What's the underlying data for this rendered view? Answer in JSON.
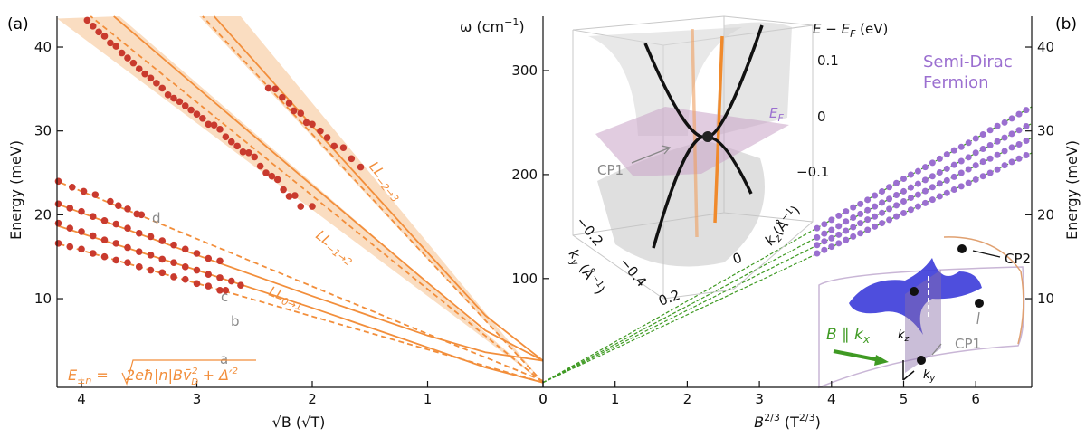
{
  "panel_labels": {
    "a": "(a)",
    "b": "(b)"
  },
  "colors": {
    "model": "#f28e3b",
    "band": "#f9d7b6",
    "data_a": "#c93a2e",
    "data_b": "#9b6fd0",
    "fit_b": "#3f9a23",
    "annot": "#8a8a8a"
  },
  "chart_data": [
    {
      "type": "scatter",
      "panel": "(a)",
      "xlabel": "√B (√T)",
      "ylabel": "Energy (meV)",
      "xlim": [
        4.21,
        0
      ],
      "ylim": [
        -0.6,
        43.7
      ],
      "xticks": [
        "4",
        "3",
        "2",
        "1",
        "0"
      ],
      "yticks": [
        "10",
        "20",
        "30",
        "40"
      ],
      "x_reversed": true,
      "grid": false,
      "formula": {
        "E": "E",
        "sub": "±n",
        "eq": " = ",
        "root": "2eħ|n|B",
        "v": "v̄",
        "vsub": "D",
        "vsup": "2",
        "plus": " + Δ′",
        "dsup": "2"
      },
      "curve_labels": [
        {
          "base": "LL",
          "sub": "−2→3"
        },
        {
          "base": "LL",
          "sub": "−1→2"
        },
        {
          "base": "LL",
          "sub": "0→1"
        }
      ],
      "branch_labels": [
        "a",
        "b",
        "c",
        "d"
      ],
      "model_curves": [
        {
          "style": "solid",
          "points": [
            [
              0,
              0
            ],
            [
              0.5,
              1.8
            ],
            [
              1,
              4.2
            ],
            [
              2,
              8.9
            ],
            [
              3,
              13.4
            ],
            [
              4.21,
              18.7
            ]
          ]
        },
        {
          "style": "solid",
          "points": [
            [
              0,
              2.6
            ],
            [
              0.5,
              3.6
            ],
            [
              1,
              5.6
            ],
            [
              2,
              10.3
            ],
            [
              3,
              15.2
            ],
            [
              4.21,
              21.3
            ]
          ]
        },
        {
          "style": "dashed",
          "points": [
            [
              0,
              0
            ],
            [
              4.21,
              16.6
            ]
          ]
        },
        {
          "style": "dashed",
          "points": [
            [
              0,
              0.2
            ],
            [
              1,
              5.8
            ],
            [
              4.21,
              24
            ]
          ]
        },
        {
          "style": "solid",
          "points": [
            [
              0,
              2.6
            ],
            [
              0.5,
              6.2
            ],
            [
              1,
              11.9
            ],
            [
              2,
              23.5
            ],
            [
              3,
              35.2
            ],
            [
              3.72,
              43.7
            ]
          ]
        },
        {
          "style": "dashed",
          "points": [
            [
              0,
              0
            ],
            [
              3.92,
              43.7
            ]
          ]
        },
        {
          "style": "solid",
          "points": [
            [
              0,
              2.6
            ],
            [
              0.5,
              8.0
            ],
            [
              1,
              15.5
            ],
            [
              2,
              30.6
            ],
            [
              2.85,
              43.7
            ]
          ]
        },
        {
          "style": "dashed",
          "points": [
            [
              0,
              0
            ],
            [
              2.95,
              43.7
            ]
          ]
        }
      ],
      "bands": [
        {
          "lower": [
            [
              0,
              0
            ],
            [
              4.21,
              43.4
            ]
          ],
          "upper": [
            [
              0,
              0
            ],
            [
              3.67,
              43.7
            ]
          ]
        },
        {
          "lower": [
            [
              0,
              0
            ],
            [
              2.98,
              43.7
            ]
          ],
          "upper": [
            [
              0,
              0
            ],
            [
              2.62,
              43.7
            ]
          ]
        }
      ],
      "series": [
        {
          "label": "a",
          "points": [
            [
              4.2,
              16.6
            ],
            [
              4.1,
              16.2
            ],
            [
              4.0,
              15.9
            ],
            [
              3.9,
              15.4
            ],
            [
              3.8,
              15.0
            ],
            [
              3.7,
              14.6
            ],
            [
              3.6,
              14.3
            ],
            [
              3.5,
              13.8
            ],
            [
              3.4,
              13.4
            ],
            [
              3.3,
              13.1
            ],
            [
              3.2,
              12.6
            ],
            [
              3.1,
              12.3
            ],
            [
              3.0,
              11.8
            ],
            [
              2.9,
              11.5
            ],
            [
              2.8,
              11.0
            ],
            [
              2.75,
              11.0
            ]
          ]
        },
        {
          "label": "b",
          "points": [
            [
              4.2,
              19.0
            ],
            [
              4.1,
              18.4
            ],
            [
              4.0,
              18.0
            ],
            [
              3.9,
              17.5
            ],
            [
              3.8,
              17.0
            ],
            [
              3.7,
              16.6
            ],
            [
              3.6,
              16.1
            ],
            [
              3.5,
              15.6
            ],
            [
              3.4,
              15.2
            ],
            [
              3.3,
              14.7
            ],
            [
              3.2,
              14.3
            ],
            [
              3.1,
              13.8
            ],
            [
              3.0,
              13.4
            ],
            [
              2.9,
              12.9
            ],
            [
              2.8,
              12.5
            ],
            [
              2.7,
              12.1
            ],
            [
              2.62,
              11.6
            ]
          ]
        },
        {
          "label": "c",
          "points": [
            [
              4.2,
              21.3
            ],
            [
              4.1,
              20.8
            ],
            [
              4.0,
              20.4
            ],
            [
              3.9,
              19.8
            ],
            [
              3.8,
              19.3
            ],
            [
              3.7,
              18.9
            ],
            [
              3.6,
              18.4
            ],
            [
              3.5,
              17.8
            ],
            [
              3.4,
              17.4
            ],
            [
              3.3,
              16.9
            ],
            [
              3.2,
              16.4
            ],
            [
              3.1,
              15.9
            ],
            [
              3.0,
              15.4
            ],
            [
              2.9,
              14.8
            ],
            [
              2.8,
              14.5
            ]
          ]
        },
        {
          "label": "d",
          "points": [
            [
              4.2,
              24.0
            ],
            [
              4.08,
              23.3
            ],
            [
              3.98,
              22.8
            ],
            [
              3.88,
              22.4
            ],
            [
              3.75,
              21.6
            ],
            [
              3.68,
              21.1
            ],
            [
              3.6,
              20.7
            ],
            [
              3.52,
              20.1
            ],
            [
              3.48,
              20.0
            ]
          ]
        },
        {
          "label": "LL−1→2",
          "points": [
            [
              3.95,
              43.2
            ],
            [
              3.9,
              42.5
            ],
            [
              3.85,
              41.8
            ],
            [
              3.8,
              41.3
            ],
            [
              3.75,
              40.5
            ],
            [
              3.7,
              40.1
            ],
            [
              3.65,
              39.3
            ],
            [
              3.6,
              38.7
            ],
            [
              3.55,
              38.1
            ],
            [
              3.5,
              37.4
            ],
            [
              3.45,
              36.8
            ],
            [
              3.4,
              36.3
            ],
            [
              3.35,
              35.7
            ],
            [
              3.3,
              35.1
            ],
            [
              3.25,
              34.3
            ],
            [
              3.2,
              33.9
            ],
            [
              3.15,
              33.5
            ],
            [
              3.1,
              33.0
            ],
            [
              3.05,
              32.5
            ],
            [
              3.0,
              32.0
            ],
            [
              2.95,
              31.5
            ],
            [
              2.9,
              30.8
            ],
            [
              2.85,
              30.7
            ],
            [
              2.8,
              30.2
            ],
            [
              2.75,
              29.3
            ],
            [
              2.7,
              28.7
            ],
            [
              2.65,
              28.2
            ],
            [
              2.6,
              27.5
            ],
            [
              2.55,
              27.4
            ],
            [
              2.5,
              26.9
            ],
            [
              2.45,
              25.8
            ],
            [
              2.4,
              25.0
            ],
            [
              2.35,
              24.6
            ],
            [
              2.3,
              24.2
            ],
            [
              2.25,
              23.0
            ],
            [
              2.2,
              22.2
            ],
            [
              2.15,
              22.3
            ],
            [
              2.1,
              21.0
            ],
            [
              2.0,
              21.0
            ]
          ]
        },
        {
          "label": "LL−2→3",
          "points": [
            [
              2.38,
              35.1
            ],
            [
              2.32,
              35.0
            ],
            [
              2.26,
              34.0
            ],
            [
              2.2,
              33.3
            ],
            [
              2.16,
              32.4
            ],
            [
              2.1,
              32.1
            ],
            [
              2.05,
              31.0
            ],
            [
              2.0,
              30.8
            ],
            [
              1.93,
              30.0
            ],
            [
              1.87,
              29.2
            ],
            [
              1.81,
              28.2
            ],
            [
              1.73,
              28.0
            ],
            [
              1.66,
              26.7
            ],
            [
              1.58,
              25.7
            ]
          ]
        }
      ]
    },
    {
      "type": "scatter",
      "panel": "(b)",
      "xlabel_base": "B",
      "xlabel_sup": "2/3",
      "xlabel_unit": " (T",
      "xlabel_unit_sup": "2/3",
      "xlabel_close": ")",
      "ylabel_left_base": "ω (cm",
      "ylabel_left_sup": "−1",
      "ylabel_left_close": ")",
      "ylabel_right": "Energy (meV)",
      "xlim": [
        0,
        6.78
      ],
      "ylim": [
        -0.6,
        43.7
      ],
      "xticks": [
        "0",
        "1",
        "2",
        "3",
        "4",
        "5",
        "6"
      ],
      "yticks_left": [
        "100",
        "200",
        "300"
      ],
      "yticks_right": [
        "10",
        "20",
        "30",
        "40"
      ],
      "grid": false,
      "legend_text": [
        "Semi-Dirac",
        "Fermion"
      ],
      "fits": [
        [
          [
            0,
            0
          ],
          [
            6.78,
            32.9
          ]
        ],
        [
          [
            0,
            0
          ],
          [
            6.78,
            30.9
          ]
        ],
        [
          [
            0,
            0
          ],
          [
            6.78,
            29.2
          ]
        ],
        [
          [
            0,
            0
          ],
          [
            6.78,
            27.4
          ]
        ]
      ],
      "x": [
        3.8,
        4.0,
        4.2,
        4.4,
        4.6,
        4.8,
        5.0,
        5.2,
        5.4,
        5.6,
        5.8,
        6.0,
        6.2,
        6.4,
        6.6
      ],
      "series": [
        {
          "values": [
            18.4,
            19.4,
            20.4,
            21.3,
            22.3,
            23.3,
            24.3,
            25.2,
            26.2,
            27.2,
            28.1,
            29.1,
            30.1,
            31.0,
            32.0
          ]
        },
        {
          "values": [
            17.3,
            18.2,
            19.2,
            20.1,
            21.0,
            21.9,
            22.8,
            23.7,
            24.6,
            25.5,
            26.4,
            27.4,
            28.3,
            29.2,
            30.1
          ]
        },
        {
          "values": [
            16.4,
            17.2,
            18.1,
            19.0,
            19.8,
            20.7,
            21.6,
            22.4,
            23.3,
            24.1,
            25.0,
            25.9,
            26.7,
            27.6,
            28.4
          ]
        },
        {
          "values": [
            15.4,
            16.2,
            17.0,
            17.8,
            18.6,
            19.4,
            20.2,
            21.0,
            21.8,
            22.6,
            23.4,
            24.2,
            25.0,
            25.9,
            26.7
          ]
        }
      ]
    }
  ],
  "inset_band": {
    "zlabel_base": "E − E",
    "zlabel_sub": "F",
    "zlabel_unit": " (eV)",
    "zticks": [
      "0.1",
      "0",
      "−0.1"
    ],
    "ef_base": "E",
    "ef_sub": "F",
    "cp1": "CP1",
    "ky_ticks": [
      "−0.2",
      "−0.4",
      "0.2"
    ],
    "ky_base": "k",
    "ky_sub": "y",
    "ky_unit": " (Å",
    "ky_sup": "−1",
    "ky_close": ")",
    "kz_ticks": [
      "0"
    ],
    "kz_base": "k",
    "kz_sub": "z",
    "kz_unit": "(Å",
    "kz_sup": "−1",
    "kz_close": ")"
  },
  "inset_fs": {
    "cp2": "CP2",
    "cp1": "CP1",
    "field_base": "B ∥ k",
    "field_sub": "x",
    "kz_base": "k",
    "kz_sub": "z",
    "ky_base": "k",
    "ky_sub": "y"
  }
}
